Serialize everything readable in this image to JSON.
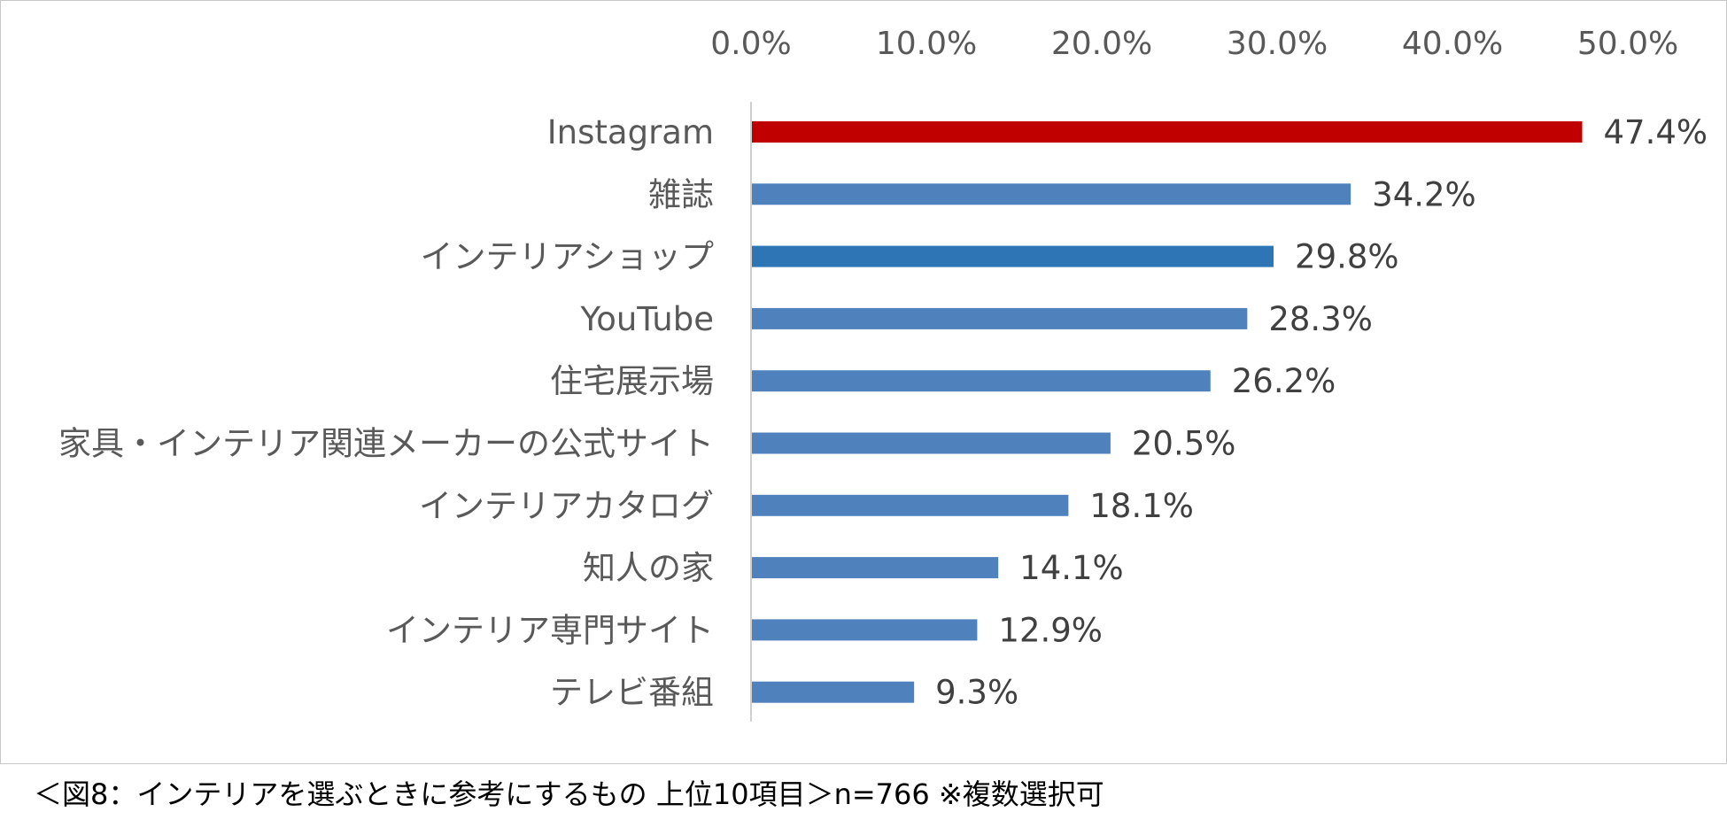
{
  "chart_data": {
    "type": "bar",
    "orientation": "horizontal",
    "categories": [
      "Instagram",
      "雑誌",
      "インテリアショップ",
      "YouTube",
      "住宅展示場",
      "家具・インテリア関連メーカーの公式サイト",
      "インテリアカタログ",
      "知人の家",
      "インテリア専門サイト",
      "テレビ番組"
    ],
    "values": [
      47.4,
      34.2,
      29.8,
      28.3,
      26.2,
      20.5,
      18.1,
      14.1,
      12.9,
      9.3
    ],
    "value_labels": [
      "47.4%",
      "34.2%",
      "29.8%",
      "28.3%",
      "26.2%",
      "20.5%",
      "18.1%",
      "14.1%",
      "12.9%",
      "9.3%"
    ],
    "bar_colors": [
      "#c00000",
      "#4f81bd",
      "#2e75b6",
      "#4f81bd",
      "#4f81bd",
      "#4f81bd",
      "#4f81bd",
      "#4f81bd",
      "#4f81bd",
      "#4f81bd"
    ],
    "xlim": [
      0,
      50
    ],
    "x_ticks": [
      0,
      10,
      20,
      30,
      40,
      50
    ],
    "x_tick_labels": [
      "0.0%",
      "10.0%",
      "20.0%",
      "30.0%",
      "40.0%",
      "50.0%"
    ],
    "x_axis_position": "top",
    "grid": false,
    "legend": "none",
    "title": "",
    "xlabel": "",
    "ylabel": ""
  },
  "caption": "＜図8：インテリアを選ぶときに参考にするもの 上位10項目＞n=766 ※複数選択可"
}
